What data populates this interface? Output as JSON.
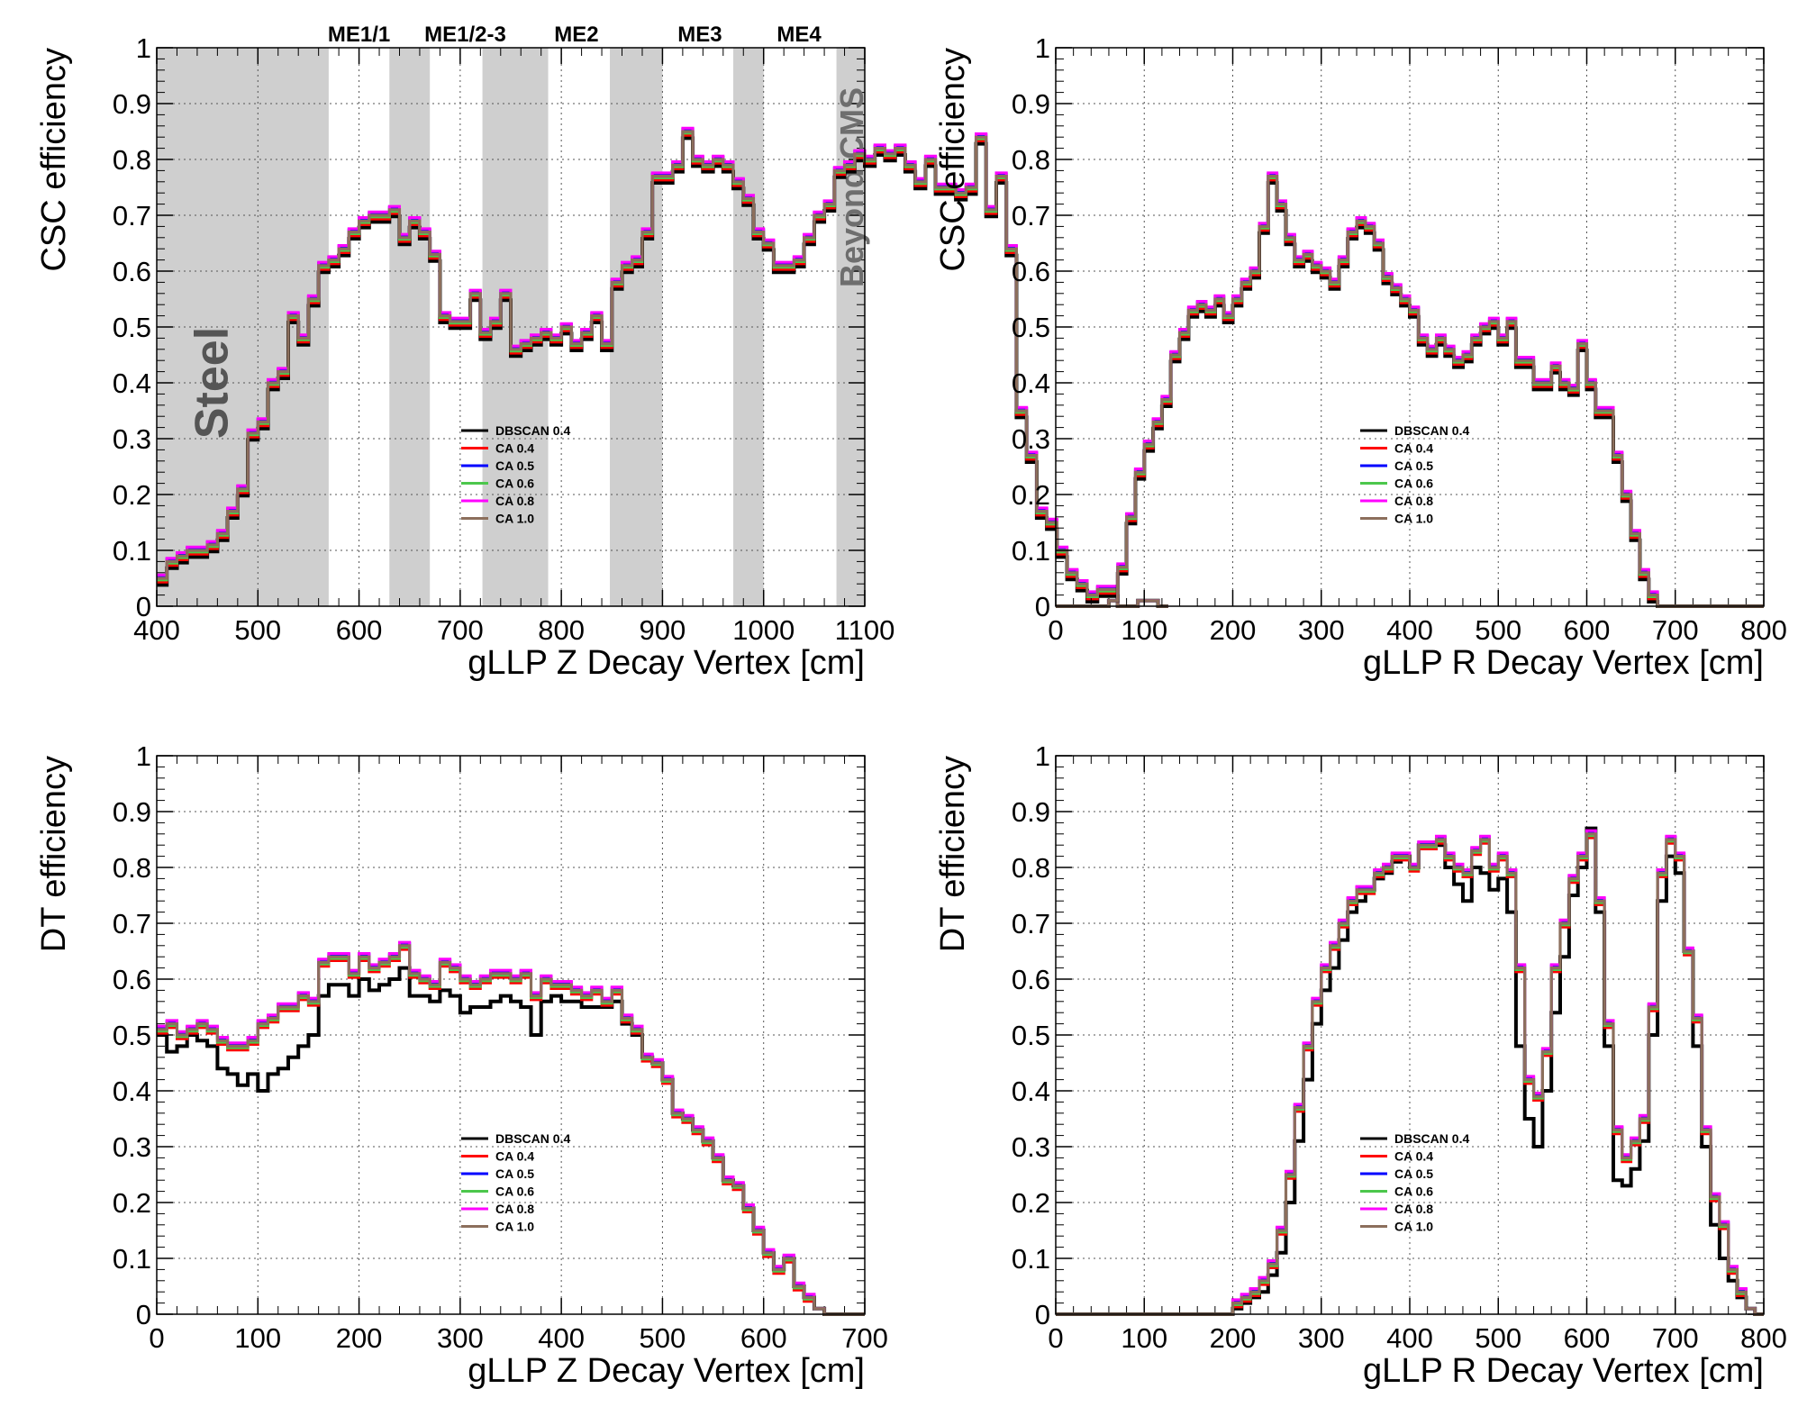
{
  "legend_labels": [
    "DBSCAN 0.4",
    "CA 0.4",
    "CA 0.5",
    "CA 0.6",
    "CA 0.8",
    "CA 1.0"
  ],
  "series_colors": [
    "#000000",
    "#ff0000",
    "#0000ff",
    "#4cc74c",
    "#ff00ff",
    "#8c6f5c"
  ],
  "chart_data": [
    {
      "type": "line",
      "step": true,
      "ylabel": "CSC efficiency",
      "xlabel": "gLLP Z Decay Vertex [cm]",
      "xlim": [
        400,
        1100
      ],
      "ylim": [
        0,
        1
      ],
      "xticks": [
        "400",
        "500",
        "600",
        "700",
        "800",
        "900",
        "1000",
        "1100"
      ],
      "yticks": [
        "0",
        "0.1",
        "0.2",
        "0.3",
        "0.4",
        "0.5",
        "0.6",
        "0.7",
        "0.8",
        "0.9",
        "1"
      ],
      "grid": true,
      "legend": "center-right",
      "bin_width": 10,
      "x_start": 400,
      "values": [
        0.05,
        0.08,
        0.09,
        0.1,
        0.1,
        0.11,
        0.13,
        0.17,
        0.21,
        0.31,
        0.33,
        0.4,
        0.42,
        0.52,
        0.48,
        0.55,
        0.61,
        0.62,
        0.64,
        0.67,
        0.69,
        0.7,
        0.7,
        0.71,
        0.66,
        0.69,
        0.67,
        0.63,
        0.52,
        0.51,
        0.51,
        0.56,
        0.49,
        0.51,
        0.56,
        0.46,
        0.47,
        0.48,
        0.49,
        0.48,
        0.5,
        0.47,
        0.49,
        0.52,
        0.47,
        0.58,
        0.61,
        0.62,
        0.67,
        0.77,
        0.77,
        0.79,
        0.85,
        0.8,
        0.79,
        0.8,
        0.79,
        0.76,
        0.73,
        0.67,
        0.65,
        0.61,
        0.61,
        0.62,
        0.66,
        0.7,
        0.72,
        0.78,
        0.79,
        0.81,
        0.8,
        0.82,
        0.81,
        0.82,
        0.79,
        0.76,
        0.8,
        0.75,
        0.75,
        0.74,
        0.75,
        0.84,
        0.71,
        0.77,
        0.64,
        0.35,
        0.27,
        0.17,
        0.15,
        0.1,
        0.06,
        0.04,
        0.02,
        0.03,
        0.03,
        0.0,
        0.0,
        0.01,
        0.01,
        0.0
      ],
      "bands": [
        [
          400,
          570
        ],
        [
          630,
          670
        ],
        [
          722,
          787
        ],
        [
          848,
          900
        ],
        [
          970,
          1000
        ],
        [
          1072,
          1100
        ]
      ],
      "station_labels": [
        {
          "text": "ME1/1",
          "x": 600
        },
        {
          "text": "ME1/2-3",
          "x": 705
        },
        {
          "text": "ME2",
          "x": 815
        },
        {
          "text": "ME3",
          "x": 937
        },
        {
          "text": "ME4",
          "x": 1035
        }
      ],
      "steel_label": "Steel",
      "beyond_label": "Beyond CMS"
    },
    {
      "type": "line",
      "step": true,
      "ylabel": "CSC efficiency",
      "xlabel": "gLLP R Decay Vertex [cm]",
      "xlim": [
        0,
        800
      ],
      "ylim": [
        0,
        1
      ],
      "xticks": [
        "0",
        "100",
        "200",
        "300",
        "400",
        "500",
        "600",
        "700",
        "800"
      ],
      "yticks": [
        "0",
        "0.1",
        "0.2",
        "0.3",
        "0.4",
        "0.5",
        "0.6",
        "0.7",
        "0.8",
        "0.9",
        "1"
      ],
      "grid": true,
      "legend": "center-right",
      "bin_width": 10,
      "x_start": 0,
      "values": [
        0,
        0,
        0,
        0,
        0,
        0,
        0.01,
        0.07,
        0.16,
        0.24,
        0.29,
        0.33,
        0.37,
        0.45,
        0.49,
        0.53,
        0.54,
        0.53,
        0.55,
        0.52,
        0.55,
        0.58,
        0.6,
        0.68,
        0.77,
        0.72,
        0.66,
        0.62,
        0.63,
        0.61,
        0.6,
        0.58,
        0.62,
        0.67,
        0.69,
        0.68,
        0.65,
        0.59,
        0.57,
        0.55,
        0.53,
        0.48,
        0.46,
        0.48,
        0.46,
        0.44,
        0.45,
        0.48,
        0.5,
        0.51,
        0.48,
        0.51,
        0.44,
        0.44,
        0.4,
        0.4,
        0.43,
        0.4,
        0.39,
        0.47,
        0.4,
        0.35,
        0.35,
        0.27,
        0.2,
        0.13,
        0.06,
        0.02,
        0,
        0,
        0,
        0,
        0,
        0,
        0,
        0,
        0,
        0,
        0,
        0
      ],
      "bands": [],
      "station_labels": [],
      "steel_label": "",
      "beyond_label": ""
    },
    {
      "type": "line",
      "step": true,
      "ylabel": "DT efficiency",
      "xlabel": "gLLP Z Decay Vertex [cm]",
      "xlim": [
        0,
        700
      ],
      "ylim": [
        0,
        1
      ],
      "xticks": [
        "0",
        "100",
        "200",
        "300",
        "400",
        "500",
        "600",
        "700"
      ],
      "yticks": [
        "0",
        "0.1",
        "0.2",
        "0.3",
        "0.4",
        "0.5",
        "0.6",
        "0.7",
        "0.8",
        "0.9",
        "1"
      ],
      "grid": true,
      "legend": "center-right",
      "bin_width": 10,
      "x_start": 0,
      "values": [
        0.51,
        0.52,
        0.5,
        0.51,
        0.52,
        0.51,
        0.49,
        0.48,
        0.48,
        0.49,
        0.52,
        0.53,
        0.55,
        0.55,
        0.57,
        0.56,
        0.63,
        0.64,
        0.64,
        0.61,
        0.64,
        0.62,
        0.63,
        0.64,
        0.66,
        0.61,
        0.6,
        0.59,
        0.63,
        0.62,
        0.6,
        0.59,
        0.6,
        0.61,
        0.61,
        0.6,
        0.61,
        0.57,
        0.6,
        0.59,
        0.59,
        0.58,
        0.57,
        0.58,
        0.56,
        0.58,
        0.53,
        0.51,
        0.46,
        0.45,
        0.42,
        0.36,
        0.35,
        0.33,
        0.31,
        0.28,
        0.24,
        0.23,
        0.19,
        0.15,
        0.11,
        0.08,
        0.1,
        0.05,
        0.03,
        0.01,
        0,
        0,
        0,
        0
      ],
      "dbscan_values": [
        0.5,
        0.47,
        0.48,
        0.5,
        0.49,
        0.48,
        0.44,
        0.43,
        0.41,
        0.43,
        0.4,
        0.43,
        0.44,
        0.46,
        0.48,
        0.5,
        0.57,
        0.59,
        0.59,
        0.57,
        0.6,
        0.58,
        0.59,
        0.6,
        0.62,
        0.57,
        0.57,
        0.56,
        0.58,
        0.57,
        0.54,
        0.55,
        0.55,
        0.56,
        0.57,
        0.56,
        0.55,
        0.5,
        0.56,
        0.57,
        0.56,
        0.56,
        0.55,
        0.55,
        0.55,
        0.56,
        0.52,
        0.5,
        0.46,
        0.45,
        0.42,
        0.36,
        0.35,
        0.33,
        0.31,
        0.28,
        0.24,
        0.23,
        0.19,
        0.15,
        0.11,
        0.08,
        0.1,
        0.05,
        0.03,
        0.01,
        0,
        0,
        0,
        0
      ],
      "bands": [],
      "station_labels": [],
      "steel_label": "",
      "beyond_label": ""
    },
    {
      "type": "line",
      "step": true,
      "ylabel": "DT efficiency",
      "xlabel": "gLLP R Decay Vertex [cm]",
      "xlim": [
        0,
        800
      ],
      "ylim": [
        0,
        1
      ],
      "xticks": [
        "0",
        "100",
        "200",
        "300",
        "400",
        "500",
        "600",
        "700",
        "800"
      ],
      "yticks": [
        "0",
        "0.1",
        "0.2",
        "0.3",
        "0.4",
        "0.5",
        "0.6",
        "0.7",
        "0.8",
        "0.9",
        "1"
      ],
      "grid": true,
      "legend": "center-right",
      "bin_width": 10,
      "x_start": 0,
      "values": [
        0,
        0,
        0,
        0,
        0,
        0,
        0,
        0,
        0,
        0,
        0,
        0,
        0,
        0,
        0,
        0,
        0,
        0,
        0,
        0,
        0.02,
        0.03,
        0.04,
        0.06,
        0.09,
        0.15,
        0.25,
        0.37,
        0.48,
        0.56,
        0.62,
        0.66,
        0.7,
        0.74,
        0.76,
        0.76,
        0.79,
        0.8,
        0.82,
        0.82,
        0.8,
        0.84,
        0.84,
        0.85,
        0.82,
        0.8,
        0.79,
        0.83,
        0.85,
        0.8,
        0.82,
        0.79,
        0.62,
        0.42,
        0.39,
        0.47,
        0.62,
        0.7,
        0.78,
        0.82,
        0.86,
        0.74,
        0.52,
        0.33,
        0.28,
        0.31,
        0.35,
        0.55,
        0.79,
        0.85,
        0.82,
        0.65,
        0.53,
        0.33,
        0.21,
        0.16,
        0.08,
        0.04,
        0.01,
        0
      ],
      "dbscan_values": [
        0,
        0,
        0,
        0,
        0,
        0,
        0,
        0,
        0,
        0,
        0,
        0,
        0,
        0,
        0,
        0,
        0,
        0,
        0,
        0,
        0.01,
        0.02,
        0.03,
        0.04,
        0.07,
        0.11,
        0.2,
        0.31,
        0.42,
        0.52,
        0.58,
        0.62,
        0.67,
        0.72,
        0.74,
        0.76,
        0.78,
        0.79,
        0.81,
        0.82,
        0.8,
        0.84,
        0.84,
        0.84,
        0.8,
        0.77,
        0.74,
        0.8,
        0.79,
        0.76,
        0.78,
        0.72,
        0.48,
        0.35,
        0.3,
        0.4,
        0.54,
        0.64,
        0.75,
        0.8,
        0.87,
        0.72,
        0.48,
        0.24,
        0.23,
        0.26,
        0.31,
        0.5,
        0.74,
        0.82,
        0.79,
        0.65,
        0.48,
        0.3,
        0.16,
        0.1,
        0.06,
        0.03,
        0.01,
        0
      ],
      "bands": [],
      "station_labels": [],
      "steel_label": "",
      "beyond_label": ""
    }
  ]
}
